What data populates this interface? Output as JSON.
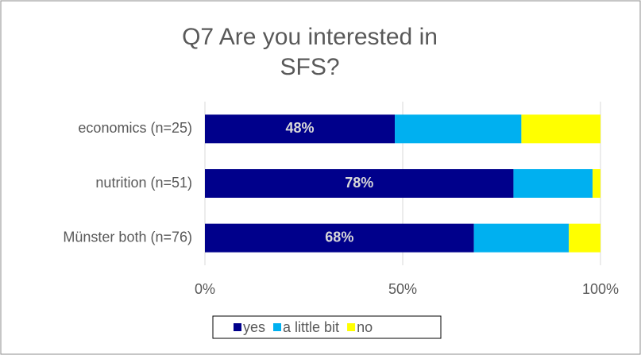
{
  "chart_data": {
    "type": "stacked-barh",
    "title": "Q7 Are you interested in SFS?",
    "categories": [
      "economics (n=25)",
      "nutrition (n=51)",
      "Münster both (n=76)"
    ],
    "series": [
      {
        "name": "yes",
        "color": "#00008b",
        "values": [
          48,
          78,
          68
        ],
        "value_labels": [
          "48%",
          "78%",
          "68%"
        ]
      },
      {
        "name": "a little bit",
        "color": "#00b0f0",
        "values": [
          32,
          20,
          24
        ]
      },
      {
        "name": "no",
        "color": "#ffff00",
        "values": [
          20,
          2,
          8
        ]
      }
    ],
    "xlim": [
      0,
      100
    ],
    "xticks": [
      {
        "value": 0,
        "label": "0%"
      },
      {
        "value": 50,
        "label": "50%"
      },
      {
        "value": 100,
        "label": "100%"
      }
    ],
    "grid": true,
    "legend": "bottom"
  }
}
